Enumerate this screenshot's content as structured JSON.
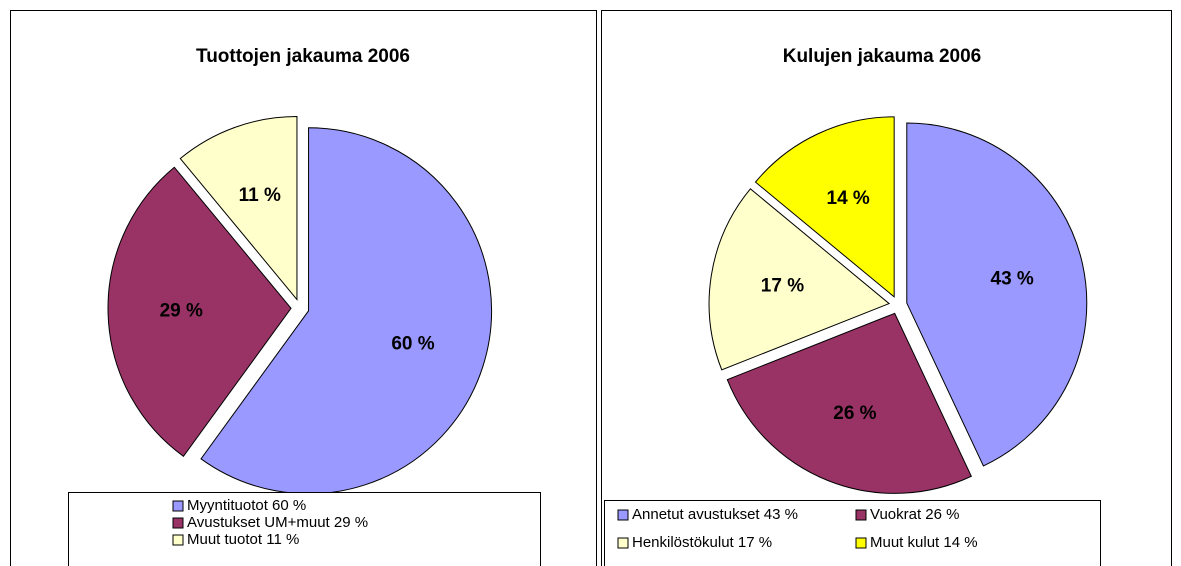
{
  "chart_data": [
    {
      "type": "pie",
      "title": "Tuottojen jakauma 2006",
      "categories": [
        "Myyntituotot 60 %",
        "Avustukset UM+muut 29 %",
        "Muut tuotot 11 %"
      ],
      "values": [
        60,
        29,
        11
      ],
      "value_labels": [
        "60 %",
        "29 %",
        "11 %"
      ],
      "colors": [
        "#9999ff",
        "#993366",
        "#ffffcc"
      ]
    },
    {
      "type": "pie",
      "title": "Kulujen jakauma 2006",
      "categories": [
        "Annetut avustukset 43 %",
        "Vuokrat 26 %",
        "Henkilöstökulut 17 %",
        "Muut kulut 14 %"
      ],
      "values": [
        43,
        26,
        17,
        14
      ],
      "value_labels": [
        "43 %",
        "26 %",
        "17 %",
        "14 %"
      ],
      "colors": [
        "#9999ff",
        "#993366",
        "#ffffcc",
        "#ffff00"
      ]
    }
  ]
}
